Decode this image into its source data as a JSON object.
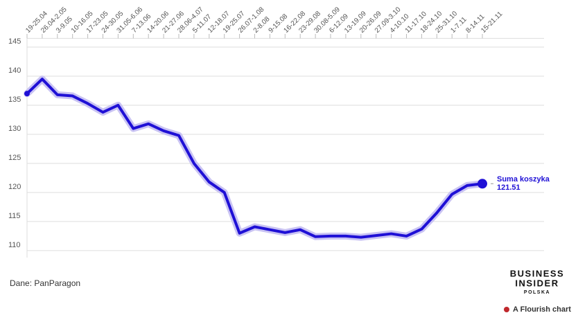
{
  "chart_data": {
    "type": "line",
    "categories": [
      "19-25.04",
      "26.04-2.05",
      "3-9.05",
      "10-16.05",
      "17-23.05",
      "24-30.05",
      "31.05-6.06",
      "7-13.06",
      "14-20.06",
      "21-27.06",
      "28.06-4.07",
      "5-11.07",
      "12-18.07",
      "19-25.07",
      "26.07-1.08",
      "2-8.08",
      "9-15.08",
      "16-22.08",
      "23-29.08",
      "30.08-5.09",
      "6-12.09",
      "13-19.09",
      "20-26.09",
      "27.09-3.10",
      "4-10.10",
      "11-17.10",
      "18-24.10",
      "25-31.10",
      "1-7.11",
      "8-14.11",
      "15-21.11"
    ],
    "series": [
      {
        "name": "Suma koszyka",
        "color": "#1f10d6",
        "values": [
          137.0,
          139.5,
          136.8,
          136.6,
          135.3,
          133.8,
          135.0,
          131.0,
          131.8,
          130.6,
          129.8,
          125.0,
          121.8,
          120.0,
          113.0,
          114.1,
          113.6,
          113.1,
          113.6,
          112.4,
          112.5,
          112.5,
          112.3,
          112.6,
          112.9,
          112.5,
          113.7,
          116.5,
          119.7,
          121.2,
          121.51
        ]
      }
    ],
    "ylim": [
      108.8,
      146.5
    ],
    "yticks": [
      110,
      115,
      120,
      125,
      130,
      135,
      140,
      145
    ],
    "grid": true,
    "source": "Dane: PanParagon",
    "logo": {
      "line1": "BUSINESS",
      "line2": "INSIDER",
      "line3": "POLSKA"
    },
    "credit": "A Flourish chart"
  }
}
